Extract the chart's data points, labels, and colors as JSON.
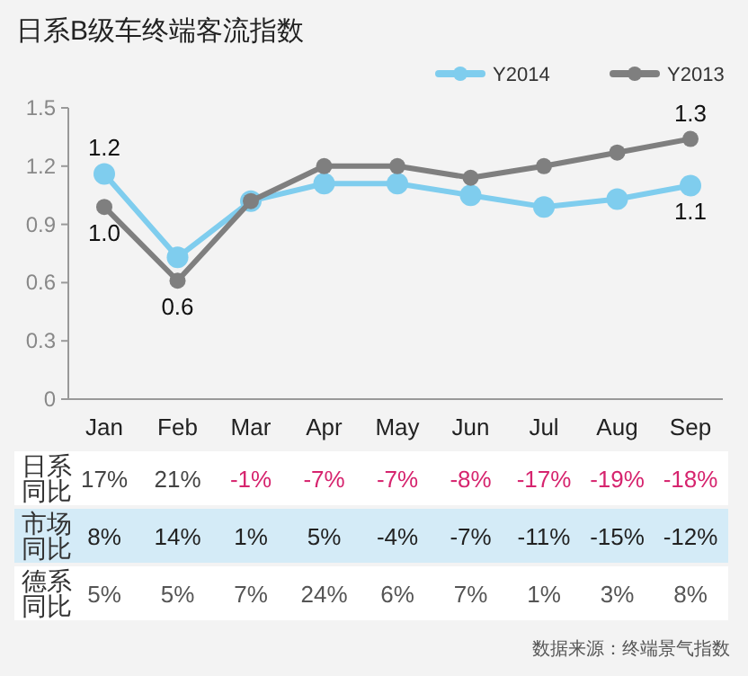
{
  "chart_data": [
    {
      "type": "line",
      "title": "日系B级车终端客流指数",
      "categories": [
        "Jan",
        "Feb",
        "Mar",
        "Apr",
        "May",
        "Jun",
        "Jul",
        "Aug",
        "Sep"
      ],
      "series": [
        {
          "name": "Y2014",
          "color": "#7fcdee",
          "values": [
            1.16,
            0.73,
            1.02,
            1.11,
            1.11,
            1.05,
            0.99,
            1.03,
            1.1
          ],
          "value_labels": [
            "1.2",
            null,
            null,
            null,
            null,
            null,
            null,
            null,
            "1.1"
          ]
        },
        {
          "name": "Y2013",
          "color": "#7f7f7f",
          "values": [
            0.99,
            0.61,
            1.02,
            1.2,
            1.2,
            1.14,
            1.2,
            1.27,
            1.34
          ],
          "value_labels": [
            "1.0",
            "0.6",
            null,
            null,
            null,
            null,
            null,
            null,
            "1.3"
          ]
        }
      ],
      "ylim": [
        0,
        1.5
      ],
      "yticks": [
        0,
        0.3,
        0.6,
        0.9,
        1.2,
        1.5
      ],
      "grid": false,
      "legend": "top right",
      "marker": "circle",
      "line_style": "solid"
    },
    {
      "type": "heatmap",
      "categories": [
        null,
        null,
        null,
        null,
        null,
        null,
        null,
        null,
        null
      ],
      "tick_labels": "y",
      "y_categories": [
        "日系同比",
        "市场同比",
        "德系同比"
      ],
      "annotations": [
        "数据来源：终端景气指数"
      ],
      "cells": [
        [
          17,
          21,
          -1,
          -7,
          -7,
          -8,
          -17,
          -19,
          -18
        ],
        [
          8,
          14,
          1,
          5,
          -4,
          -7,
          -11,
          -15,
          -12
        ],
        [
          5,
          5,
          7,
          24,
          6,
          7,
          1,
          3,
          8
        ]
      ],
      "cell_labels": [
        [
          "17%",
          "21%",
          "-1%",
          "-7%",
          "-7%",
          "-8%",
          "-17%",
          "-19%",
          "-18%"
        ],
        [
          "8%",
          "14%",
          "1%",
          "5%",
          "-4%",
          "-7%",
          "-11%",
          "-15%",
          "-12%"
        ],
        [
          "5%",
          "5%",
          "7%",
          "24%",
          "6%",
          "7%",
          "1%",
          "3%",
          "8%"
        ]
      ]
    }
  ]
}
